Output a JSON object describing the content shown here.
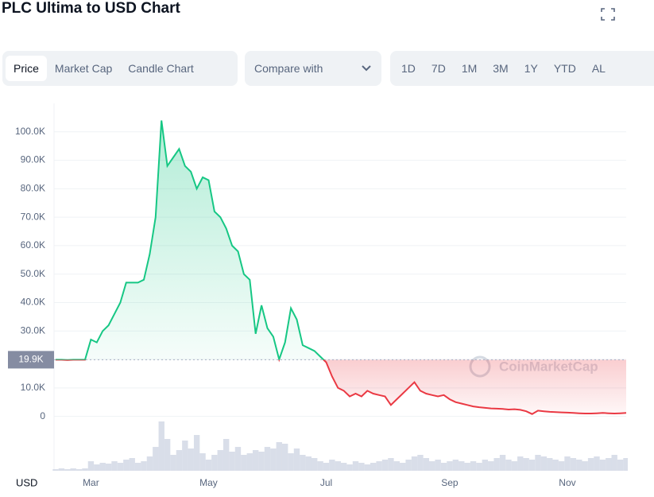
{
  "chart_data": {
    "type": "line",
    "title": "PLC Ultima to USD Chart",
    "currency": "USD",
    "categories": [
      null,
      null,
      null,
      null,
      null,
      null,
      "Mar",
      null,
      null,
      null,
      null,
      null,
      null,
      null,
      null,
      null,
      null,
      null,
      null,
      null,
      null,
      null,
      null,
      null,
      null,
      null,
      "May",
      null,
      null,
      null,
      null,
      null,
      null,
      null,
      null,
      null,
      null,
      null,
      null,
      null,
      null,
      null,
      null,
      null,
      null,
      null,
      "Jul",
      null,
      null,
      null,
      null,
      null,
      null,
      null,
      null,
      null,
      null,
      null,
      null,
      null,
      null,
      null,
      null,
      null,
      null,
      null,
      null,
      "Sep",
      null,
      null,
      null,
      null,
      null,
      null,
      null,
      null,
      null,
      null,
      null,
      null,
      null,
      null,
      null,
      null,
      null,
      null,
      null,
      "Nov",
      null,
      null,
      null,
      null,
      null,
      null,
      null,
      null,
      null,
      null
    ],
    "values": [
      19900,
      19900,
      19800,
      19900,
      19900,
      19900,
      27000,
      26000,
      30000,
      32000,
      36000,
      40000,
      47000,
      47000,
      47000,
      48000,
      57000,
      70000,
      104000,
      88000,
      91000,
      94000,
      88000,
      86000,
      80000,
      84000,
      83000,
      72000,
      70000,
      66000,
      60000,
      58000,
      50000,
      48000,
      29000,
      39000,
      31000,
      28000,
      20000,
      26000,
      38000,
      34000,
      25000,
      24000,
      23000,
      21000,
      19000,
      14000,
      10000,
      9000,
      7000,
      8000,
      7000,
      9000,
      8000,
      7500,
      7000,
      4000,
      6000,
      8000,
      10000,
      12000,
      9000,
      8000,
      7500,
      7000,
      7500,
      6000,
      5000,
      4500,
      4000,
      3500,
      3200,
      3000,
      2800,
      2700,
      2600,
      2400,
      2500,
      2300,
      1800,
      800,
      2000,
      1800,
      1600,
      1500,
      1400,
      1300,
      1200,
      1100,
      1000,
      1000,
      1100,
      1200,
      1100,
      1000,
      1100,
      1200
    ],
    "volume": [
      2,
      3,
      2,
      3,
      2,
      3,
      12,
      8,
      10,
      9,
      12,
      10,
      14,
      16,
      10,
      12,
      18,
      30,
      62,
      40,
      20,
      26,
      38,
      28,
      45,
      22,
      14,
      20,
      26,
      40,
      24,
      30,
      20,
      22,
      26,
      24,
      30,
      28,
      36,
      34,
      22,
      28,
      20,
      18,
      16,
      12,
      10,
      14,
      12,
      10,
      8,
      12,
      10,
      8,
      10,
      12,
      14,
      16,
      12,
      10,
      14,
      18,
      20,
      16,
      12,
      14,
      10,
      12,
      14,
      12,
      10,
      12,
      10,
      14,
      12,
      16,
      20,
      14,
      12,
      18,
      16,
      14,
      20,
      18,
      16,
      14,
      12,
      18,
      16,
      14,
      12,
      16,
      18,
      14,
      16,
      20,
      14,
      16
    ],
    "ylim": [
      -18000,
      110000
    ],
    "yticks": [
      0,
      {
        "value": 10000,
        "label": "10.0K"
      },
      {
        "value": 20000,
        "label": "20.0K"
      },
      {
        "value": 30000,
        "label": "30.0K"
      },
      {
        "value": 40000,
        "label": "40.0K"
      },
      {
        "value": 50000,
        "label": "50.0K"
      },
      {
        "value": 60000,
        "label": "60.0K"
      },
      {
        "value": 70000,
        "label": "70.0K"
      },
      {
        "value": 80000,
        "label": "80.0K"
      },
      {
        "value": 90000,
        "label": "90.0K"
      },
      {
        "value": 100000,
        "label": "100.0K"
      }
    ],
    "reference": {
      "value": 19900,
      "label": "19.9K"
    },
    "up_color": "#16c784",
    "down_color": "#ea3943",
    "volume_color": "#cfd6e4",
    "grid": true,
    "watermark": "CoinMarketCap"
  },
  "controls": {
    "tabs": [
      "Price",
      "Market Cap",
      "Candle Chart"
    ],
    "selected_tab": "Price",
    "compare": "Compare with",
    "ranges": [
      "1D",
      "7D",
      "1M",
      "3M",
      "1Y",
      "YTD",
      "AL"
    ]
  }
}
